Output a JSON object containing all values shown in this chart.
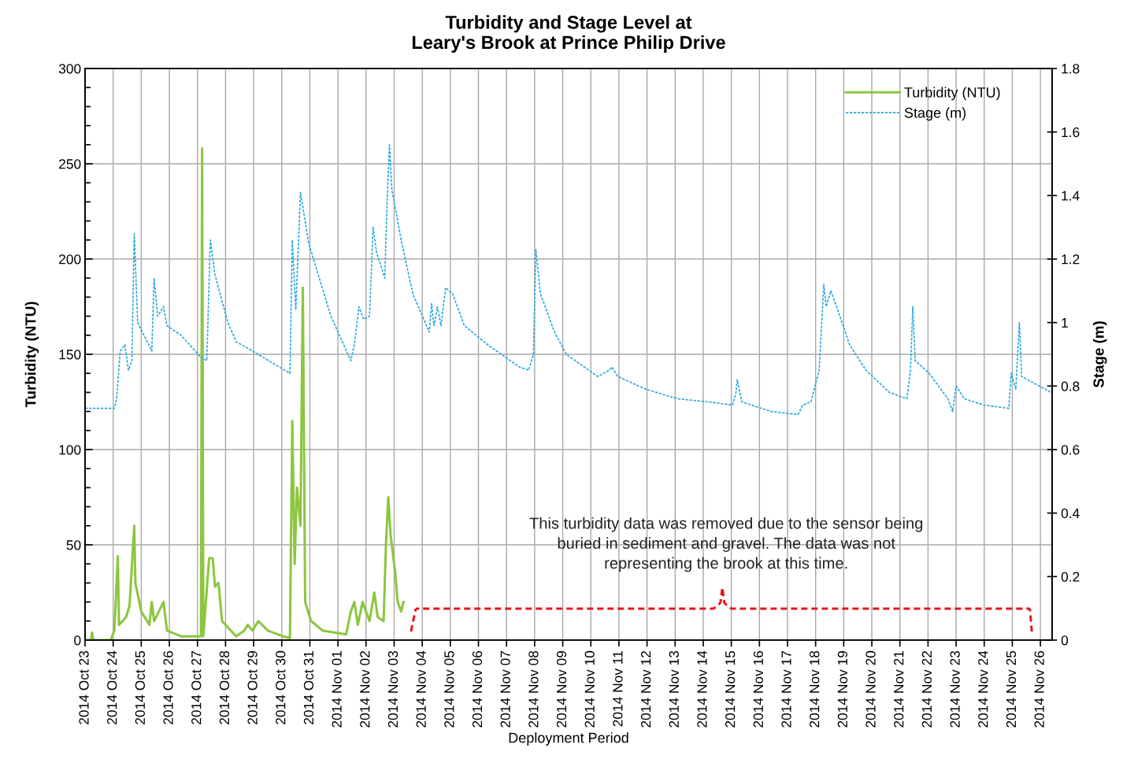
{
  "chart_data": {
    "type": "line",
    "title": "Turbidity and Stage Level at\nLeary's Brook at Prince Philip Drive",
    "xlabel": "Deployment Period",
    "ylabel": "Turbidity (NTU)",
    "y2label": "Stage (m)",
    "xlim": [
      "2014-10-23",
      "2014-11-26T10:00"
    ],
    "xticks": [
      {
        "value": "2014-10-23",
        "label": "2014 Oct 23"
      },
      {
        "value": "2014-10-24",
        "label": "2014 Oct 24"
      },
      {
        "value": "2014-10-25",
        "label": "2014 Oct 25"
      },
      {
        "value": "2014-10-26",
        "label": "2014 Oct 26"
      },
      {
        "value": "2014-10-27",
        "label": "2014 Oct 27"
      },
      {
        "value": "2014-10-28",
        "label": "2014 Oct 28"
      },
      {
        "value": "2014-10-29",
        "label": "2014 Oct 29"
      },
      {
        "value": "2014-10-30",
        "label": "2014 Oct 30"
      },
      {
        "value": "2014-10-31",
        "label": "2014 Oct 31"
      },
      {
        "value": "2014-11-01",
        "label": "2014 Nov 01"
      },
      {
        "value": "2014-11-02",
        "label": "2014 Nov 02"
      },
      {
        "value": "2014-11-03",
        "label": "2014 Nov 03"
      },
      {
        "value": "2014-11-04",
        "label": "2014 Nov 04"
      },
      {
        "value": "2014-11-05",
        "label": "2014 Nov 05"
      },
      {
        "value": "2014-11-06",
        "label": "2014 Nov 06"
      },
      {
        "value": "2014-11-07",
        "label": "2014 Nov 07"
      },
      {
        "value": "2014-11-08",
        "label": "2014 Nov 08"
      },
      {
        "value": "2014-11-09",
        "label": "2014 Nov 09"
      },
      {
        "value": "2014-11-10",
        "label": "2014 Nov 10"
      },
      {
        "value": "2014-11-11",
        "label": "2014 Nov 11"
      },
      {
        "value": "2014-11-12",
        "label": "2014 Nov 12"
      },
      {
        "value": "2014-11-13",
        "label": "2014 Nov 13"
      },
      {
        "value": "2014-11-14",
        "label": "2014 Nov 14"
      },
      {
        "value": "2014-11-15",
        "label": "2014 Nov 15"
      },
      {
        "value": "2014-11-16",
        "label": "2014 Nov 16"
      },
      {
        "value": "2014-11-17",
        "label": "2014 Nov 17"
      },
      {
        "value": "2014-11-18",
        "label": "2014 Nov 18"
      },
      {
        "value": "2014-11-19",
        "label": "2014 Nov 19"
      },
      {
        "value": "2014-11-20",
        "label": "2014 Nov 20"
      },
      {
        "value": "2014-11-21",
        "label": "2014 Nov 21"
      },
      {
        "value": "2014-11-22",
        "label": "2014 Nov 22"
      },
      {
        "value": "2014-11-23",
        "label": "2014 Nov 23"
      },
      {
        "value": "2014-11-24",
        "label": "2014 Nov 24"
      },
      {
        "value": "2014-11-25",
        "label": "2014 Nov 25"
      },
      {
        "value": "2014-11-26",
        "label": "2014 Nov 26"
      }
    ],
    "ylim": [
      0,
      300
    ],
    "yticks": [
      0,
      50,
      100,
      150,
      200,
      250,
      300
    ],
    "y2lim": [
      0,
      1.8
    ],
    "y2ticks": [
      0,
      0.2,
      0.4,
      0.6,
      0.8,
      1,
      1.2,
      1.4,
      1.6,
      1.8
    ],
    "grid": true,
    "legend": "top right",
    "marker": "none",
    "series": [
      {
        "name": "Turbidity (NTU)",
        "color": "#8cc63f",
        "line_style": "solid",
        "x": [
          "2014-10-23T00:00",
          "2014-10-23T05:00",
          "2014-10-23T06:00",
          "2014-10-23T07:00",
          "2014-10-23T22:00",
          "2014-10-24T01:00",
          "2014-10-24T04:00",
          "2014-10-24T05:00",
          "2014-10-24T11:00",
          "2014-10-24T14:00",
          "2014-10-24T18:00",
          "2014-10-24T19:00",
          "2014-10-25T00:00",
          "2014-10-25T07:00",
          "2014-10-25T09:00",
          "2014-10-25T11:00",
          "2014-10-25T19:00",
          "2014-10-25T22:00",
          "2014-10-26T10:00",
          "2014-10-27T03:00",
          "2014-10-27T04:00",
          "2014-10-27T05:00",
          "2014-10-27T10:00",
          "2014-10-27T13:00",
          "2014-10-27T15:00",
          "2014-10-27T18:00",
          "2014-10-27T21:00",
          "2014-10-28T09:00",
          "2014-10-28T16:00",
          "2014-10-28T19:00",
          "2014-10-28T23:00",
          "2014-10-29T04:00",
          "2014-10-29T12:00",
          "2014-10-30T01:00",
          "2014-10-30T07:00",
          "2014-10-30T09:00",
          "2014-10-30T11:00",
          "2014-10-30T13:00",
          "2014-10-30T16:00",
          "2014-10-30T18:00",
          "2014-10-30T20:00",
          "2014-10-31T01:00",
          "2014-10-31T11:00",
          "2014-11-01T07:00",
          "2014-11-01T11:00",
          "2014-11-01T14:00",
          "2014-11-01T17:00",
          "2014-11-01T21:00",
          "2014-11-02T03:00",
          "2014-11-02T07:00",
          "2014-11-02T10:00",
          "2014-11-02T15:00",
          "2014-11-02T17:00",
          "2014-11-02T19:00",
          "2014-11-02T21:00",
          "2014-11-03T01:00",
          "2014-11-03T03:00",
          "2014-11-03T06:00",
          "2014-11-03T08:00"
        ],
        "values": [
          0,
          0,
          4,
          0,
          0,
          5,
          44,
          8,
          12,
          18,
          60,
          30,
          15,
          8,
          20,
          10,
          20,
          5,
          2,
          2,
          258,
          2,
          43,
          43,
          28,
          30,
          10,
          2,
          5,
          8,
          5,
          10,
          5,
          2,
          1,
          115,
          40,
          80,
          60,
          185,
          20,
          10,
          5,
          3,
          15,
          20,
          8,
          20,
          10,
          25,
          12,
          10,
          50,
          75,
          55,
          35,
          20,
          15,
          20
        ]
      },
      {
        "name": "Stage (m)",
        "color": "#29a8e0",
        "line_style": "dotted",
        "axis": "y2",
        "x": [
          "2014-10-23T00:00",
          "2014-10-24T01:00",
          "2014-10-24T03:00",
          "2014-10-24T06:00",
          "2014-10-24T10:00",
          "2014-10-24T13:00",
          "2014-10-24T16:00",
          "2014-10-24T18:00",
          "2014-10-24T21:00",
          "2014-10-25T09:00",
          "2014-10-25T11:00",
          "2014-10-25T14:00",
          "2014-10-25T19:00",
          "2014-10-25T22:00",
          "2014-10-26T10:00",
          "2014-10-27T03:00",
          "2014-10-27T08:00",
          "2014-10-27T11:00",
          "2014-10-27T15:00",
          "2014-10-28T02:00",
          "2014-10-28T09:00",
          "2014-10-28T23:00",
          "2014-10-30T07:00",
          "2014-10-30T09:00",
          "2014-10-30T12:00",
          "2014-10-30T16:00",
          "2014-10-30T23:00",
          "2014-10-31T18:00",
          "2014-11-01T11:00",
          "2014-11-01T14:00",
          "2014-11-01T18:00",
          "2014-11-01T22:00",
          "2014-11-02T03:00",
          "2014-11-02T06:00",
          "2014-11-02T09:00",
          "2014-11-02T16:00",
          "2014-11-02T18:00",
          "2014-11-02T20:00",
          "2014-11-02T22:00",
          "2014-11-03T06:00",
          "2014-11-03T16:00",
          "2014-11-04T06:00",
          "2014-11-04T08:00",
          "2014-11-04T10:00",
          "2014-11-04T13:00",
          "2014-11-04T16:00",
          "2014-11-04T20:00",
          "2014-11-05T02:00",
          "2014-11-05T12:00",
          "2014-11-06T08:00",
          "2014-11-07T11:00",
          "2014-11-07T19:00",
          "2014-11-07T23:00",
          "2014-11-08T01:00",
          "2014-11-08T05:00",
          "2014-11-08T14:00",
          "2014-11-08T17:00",
          "2014-11-09T03:00",
          "2014-11-10T06:00",
          "2014-11-10T16:00",
          "2014-11-10T18:00",
          "2014-11-10T23:00",
          "2014-11-11T23:00",
          "2014-11-13T02:00",
          "2014-11-14T05:00",
          "2014-11-15T01:00",
          "2014-11-15T04:00",
          "2014-11-15T05:00",
          "2014-11-15T09:00",
          "2014-11-16T10:00",
          "2014-11-17T09:00",
          "2014-11-17T13:00",
          "2014-11-17T20:00",
          "2014-11-18T03:00",
          "2014-11-18T07:00",
          "2014-11-18T09:00",
          "2014-11-18T13:00",
          "2014-11-18T17:00",
          "2014-11-19T05:00",
          "2014-11-19T19:00",
          "2014-11-20T15:00",
          "2014-11-21T06:00",
          "2014-11-21T09:00",
          "2014-11-21T11:00",
          "2014-11-21T13:00",
          "2014-11-22T01:00",
          "2014-11-22T17:00",
          "2014-11-22T21:00",
          "2014-11-23T00:00",
          "2014-11-23T07:00",
          "2014-11-24T00:00",
          "2014-11-24T21:00",
          "2014-11-24T23:00",
          "2014-11-25T03:00",
          "2014-11-25T06:00",
          "2014-11-25T08:00",
          "2014-11-25T23:00",
          "2014-11-26T09:00"
        ],
        "values": [
          0.73,
          0.73,
          0.76,
          0.91,
          0.93,
          0.85,
          0.88,
          1.28,
          1.0,
          0.91,
          1.14,
          1.02,
          1.05,
          0.99,
          0.96,
          0.89,
          0.88,
          1.26,
          1.15,
          1.0,
          0.94,
          0.91,
          0.84,
          1.26,
          1.04,
          1.41,
          1.25,
          1.02,
          0.88,
          0.93,
          1.05,
          1.01,
          1.02,
          1.3,
          1.22,
          1.14,
          1.38,
          1.56,
          1.42,
          1.26,
          1.09,
          0.97,
          1.06,
          0.99,
          1.05,
          0.99,
          1.11,
          1.09,
          0.99,
          0.93,
          0.86,
          0.85,
          0.9,
          1.23,
          1.09,
          1.0,
          0.97,
          0.9,
          0.83,
          0.85,
          0.86,
          0.83,
          0.79,
          0.76,
          0.75,
          0.74,
          0.78,
          0.82,
          0.75,
          0.72,
          0.71,
          0.74,
          0.75,
          0.85,
          1.12,
          1.05,
          1.1,
          1.06,
          0.93,
          0.85,
          0.78,
          0.76,
          0.85,
          1.05,
          0.88,
          0.84,
          0.76,
          0.72,
          0.8,
          0.76,
          0.74,
          0.73,
          0.84,
          0.79,
          1.0,
          0.83,
          0.8,
          0.78
        ]
      }
    ],
    "annotations": [
      "This turbidity data was removed due to the sensor being\nburied in sediment and gravel. The data was not\nrepresenting the brook at this time."
    ]
  }
}
